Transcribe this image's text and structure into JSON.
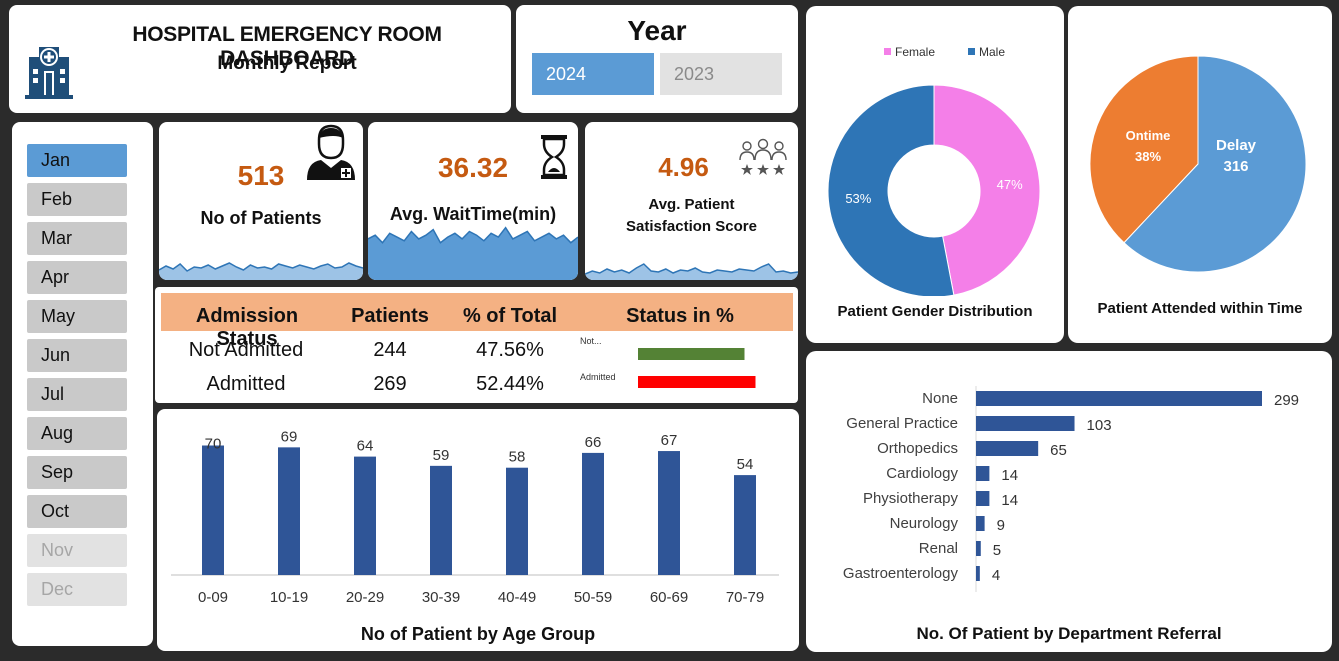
{
  "header": {
    "title": "HOSPITAL EMERGENCY ROOM DASHBOARD",
    "subtitle": "Monthly Report"
  },
  "year_selector": {
    "label": "Year",
    "options": [
      "2024",
      "2023"
    ],
    "selected": "2024"
  },
  "months": [
    {
      "label": "Jan",
      "state": "selected"
    },
    {
      "label": "Feb",
      "state": "normal"
    },
    {
      "label": "Mar",
      "state": "normal"
    },
    {
      "label": "Apr",
      "state": "normal"
    },
    {
      "label": "May",
      "state": "normal"
    },
    {
      "label": "Jun",
      "state": "normal"
    },
    {
      "label": "Jul",
      "state": "normal"
    },
    {
      "label": "Aug",
      "state": "normal"
    },
    {
      "label": "Sep",
      "state": "normal"
    },
    {
      "label": "Oct",
      "state": "normal"
    },
    {
      "label": "Nov",
      "state": "disabled"
    },
    {
      "label": "Dec",
      "state": "disabled"
    }
  ],
  "kpis": {
    "patients": {
      "value": "513",
      "label": "No of Patients",
      "icon": "doctor-icon"
    },
    "wait": {
      "value": "36.32",
      "label": "Avg. WaitTime(min)",
      "icon": "hourglass-icon"
    },
    "satisfaction": {
      "value": "4.96",
      "label_line1": "Avg. Patient",
      "label_line2": "Satisfaction Score",
      "icon": "group-rating-icon"
    }
  },
  "admission": {
    "headers": [
      "Admission Status",
      "Patients",
      "% of Total",
      "Status in %"
    ],
    "rows": [
      {
        "status": "Not Admitted",
        "patients": "244",
        "pct": "47.56%",
        "bar_label": "Not...",
        "fraction": 0.4756,
        "color": "#548235"
      },
      {
        "status": "Admitted",
        "patients": "269",
        "pct": "52.44%",
        "bar_label": "Admitted",
        "fraction": 0.5244,
        "color": "#ff0000"
      }
    ]
  },
  "colors": {
    "accent_blue": "#5b9bd5",
    "bar_blue": "#2f5597",
    "female_pink": "#f47fe8",
    "male_blue": "#2e75b6",
    "ontime_orange": "#ed7d31",
    "kpi_orange": "#c55a11"
  },
  "chart_data": [
    {
      "type": "bar",
      "title": "No of Patient by Age Group",
      "categories": [
        "0-09",
        "10-19",
        "20-29",
        "30-39",
        "40-49",
        "50-59",
        "60-69",
        "70-79"
      ],
      "values": [
        70,
        69,
        64,
        59,
        58,
        66,
        67,
        54
      ],
      "labels": [
        "70",
        "69",
        "64",
        "59",
        "58",
        "66",
        "67",
        "54"
      ],
      "ylim": [
        0,
        80
      ]
    },
    {
      "type": "pie",
      "title": "Patient Gender Distribution",
      "legend": [
        "Female",
        "Male"
      ],
      "legend_position": "top",
      "categories": [
        "Female",
        "Male"
      ],
      "values": [
        47,
        53
      ],
      "labels": [
        "47%",
        "53%"
      ],
      "donut": true
    },
    {
      "type": "pie",
      "title": "Patient Attended within Time",
      "categories": [
        "Ontime",
        "Delay"
      ],
      "values": [
        38,
        62
      ],
      "labels": [
        [
          "Ontime",
          "38%"
        ],
        [
          "Delay",
          "316"
        ]
      ]
    },
    {
      "type": "bar",
      "orientation": "horizontal",
      "title": "No. Of Patient by Department Referral",
      "categories": [
        "None",
        "General Practice",
        "Orthopedics",
        "Cardiology",
        "Physiotherapy",
        "Neurology",
        "Renal",
        "Gastroenterology"
      ],
      "values": [
        299,
        103,
        65,
        14,
        14,
        9,
        5,
        4
      ],
      "labels": [
        "299",
        "103",
        "65",
        "14",
        "14",
        "9",
        "5",
        "4"
      ],
      "xlim": [
        0,
        299
      ]
    },
    {
      "type": "area",
      "description_of": "patients sparkline",
      "values": [
        10,
        14,
        11,
        16,
        9,
        13,
        12,
        15,
        11,
        14,
        17,
        13,
        10,
        15,
        12,
        13,
        11,
        16,
        14,
        12,
        15,
        13,
        11,
        14,
        16,
        12,
        13,
        17,
        14,
        12
      ],
      "ylim": [
        0,
        40
      ]
    },
    {
      "type": "area",
      "description_of": "wait time sparkline",
      "values": [
        22,
        24,
        20,
        25,
        23,
        21,
        26,
        22,
        24,
        27,
        20,
        23,
        25,
        22,
        26,
        24,
        21,
        25,
        23,
        28,
        22,
        24,
        26,
        21,
        23,
        25,
        22,
        24,
        20,
        23
      ],
      "ylim": [
        0,
        30
      ]
    },
    {
      "type": "area",
      "description_of": "satisfaction sparkline",
      "values": [
        6,
        9,
        7,
        11,
        8,
        10,
        7,
        12,
        16,
        9,
        8,
        11,
        7,
        10,
        9,
        12,
        8,
        7,
        10,
        9,
        8,
        11,
        10,
        9,
        13,
        16,
        8,
        9,
        7,
        8
      ],
      "ylim": [
        0,
        40
      ]
    }
  ]
}
